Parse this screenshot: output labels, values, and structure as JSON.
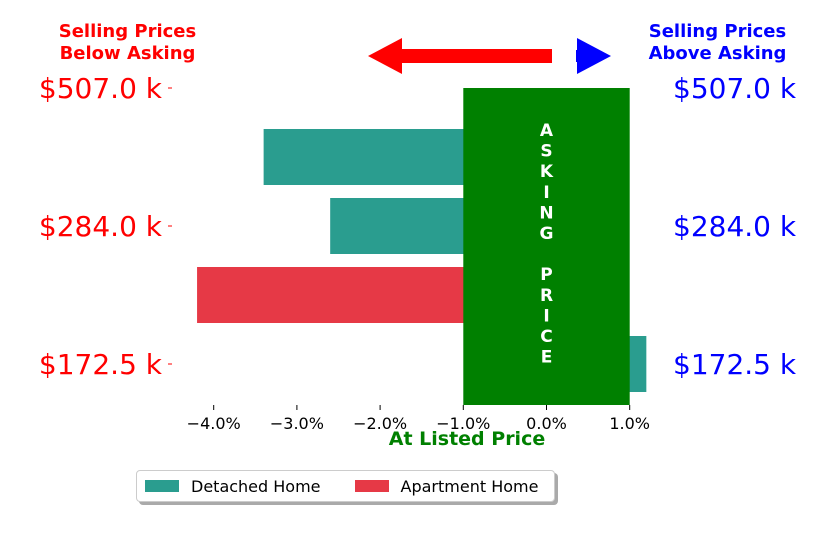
{
  "header": {
    "left_line1": "Selling Prices",
    "left_line2": "Below Asking",
    "right_line1": "Selling Prices",
    "right_line2": "Above Asking"
  },
  "colors": {
    "below": "#ff0000",
    "above": "#0000ff",
    "asking": "#008000",
    "detached": "#2a9d8f",
    "apartment": "#e63946"
  },
  "chart_data": {
    "type": "bar",
    "orientation": "horizontal",
    "xlabel": "At Listed Price",
    "xlim": [
      -4.3,
      1.2
    ],
    "xticks": [
      "−4.0%",
      "−3.0%",
      "−2.0%",
      "−1.0%",
      "0.0%",
      "1.0%"
    ],
    "xtick_values": [
      -4.0,
      -3.0,
      -2.0,
      -1.0,
      0.0,
      1.0
    ],
    "price_labels_left": [
      "$507.0 k",
      "$284.0 k",
      "$172.5 k"
    ],
    "price_labels_right": [
      "$507.0 k",
      "$284.0 k",
      "$172.5 k"
    ],
    "asking_band": {
      "x_range": [
        -1.0,
        1.0
      ],
      "label": "ASKING PRICE",
      "letters": [
        "A",
        "S",
        "K",
        "I",
        "N",
        "G",
        "",
        "P",
        "R",
        "I",
        "C",
        "E"
      ]
    },
    "bars": [
      {
        "series": "Detached Home",
        "value": -3.4
      },
      {
        "series": "Detached Home",
        "value": -2.6
      },
      {
        "series": "Apartment Home",
        "value": -4.2
      },
      {
        "series": "Detached Home",
        "value": 1.2
      }
    ],
    "legend": {
      "location": "bottom",
      "entries": [
        {
          "name": "Detached Home",
          "color": "#2a9d8f"
        },
        {
          "name": "Apartment Home",
          "color": "#e63946"
        }
      ]
    }
  }
}
